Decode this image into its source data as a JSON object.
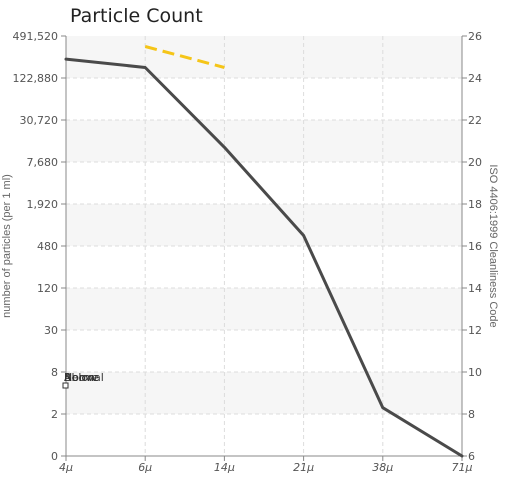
{
  "chart_data": {
    "type": "line",
    "title": "Particle Count",
    "ylabel": "number of particles (per 1 ml)",
    "y2label": "ISO 4406:1999 Cleanliness Code",
    "x": [
      "4μ",
      "6μ",
      "14μ",
      "21μ",
      "38μ",
      "71μ"
    ],
    "yticks": [
      "0",
      "2",
      "8",
      "30",
      "120",
      "480",
      "1,920",
      "7,680",
      "30,720",
      "122,880",
      "491,520"
    ],
    "y2ticks": [
      "6",
      "8",
      "10",
      "12",
      "14",
      "16",
      "18",
      "20",
      "22",
      "24",
      "26"
    ],
    "y2lim": [
      6,
      26
    ],
    "grid": true,
    "series": [
      {
        "kind": "sample",
        "color": "#4a4a4a",
        "codes": [
          24.9,
          24.5,
          20.7,
          16.5,
          8.3,
          6.0
        ]
      },
      {
        "kind": "limit",
        "color": "#f5c518",
        "x_range": [
          "6μ",
          "14μ"
        ],
        "codes": [
          25.5,
          24.5
        ]
      }
    ],
    "legend_labels": [
      "Above",
      "Below",
      "Normal"
    ]
  }
}
